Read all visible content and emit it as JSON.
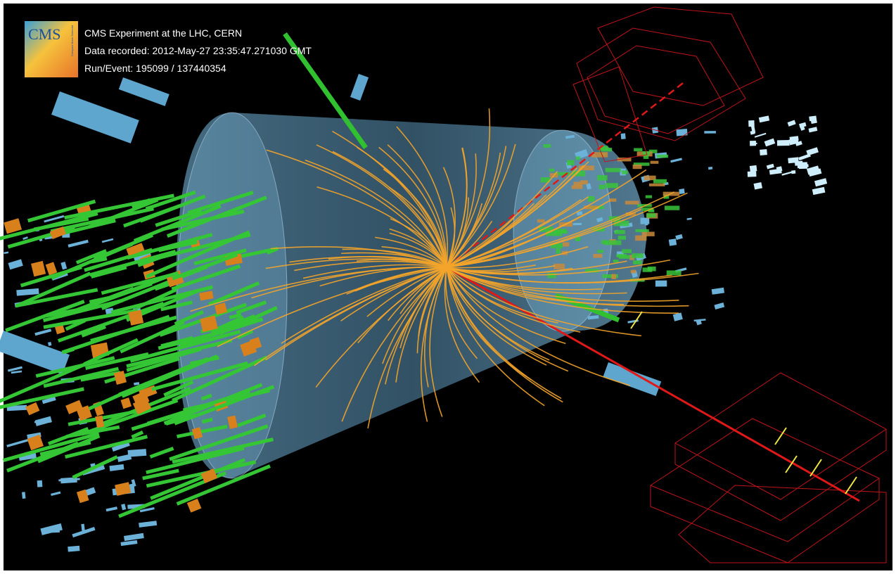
{
  "header": {
    "logo": "CMS",
    "logo_subtitle": "Compact Muon Solenoid",
    "lines": [
      "CMS Experiment at the LHC, CERN",
      "Data recorded: 2012-May-27 23:35:47.271030 GMT",
      "Run/Event: 195099 / 137440354"
    ]
  }
}
